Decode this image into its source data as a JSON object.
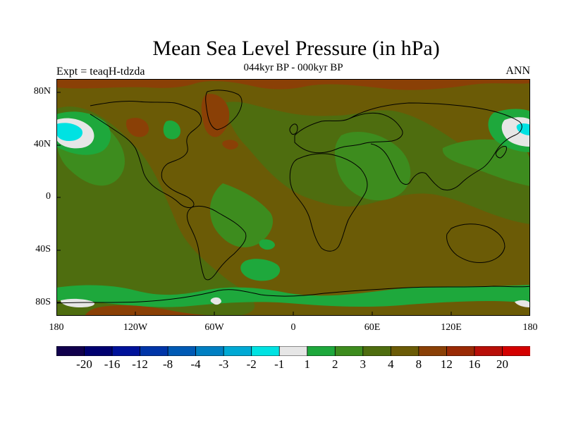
{
  "map": {
    "title": "Mean Sea Level Pressure (in hPa)",
    "subtitle": "044kyr BP - 000kyr BP",
    "left_label": "Expt = teaqH-tdzda",
    "right_label": "ANN",
    "lat_ticks": [
      "80N",
      "40N",
      "0",
      "40S",
      "80S"
    ],
    "lon_ticks": [
      "180",
      "120W",
      "60W",
      "0",
      "60E",
      "120E",
      "180"
    ],
    "colorbar_labels": [
      "-20",
      "-16",
      "-12",
      "-8",
      "-4",
      "-3",
      "-2",
      "-1",
      "1",
      "2",
      "3",
      "4",
      "8",
      "12",
      "16",
      "20"
    ],
    "colorbar_colors": [
      "#11004d",
      "#000070",
      "#00129a",
      "#0035a8",
      "#005ab5",
      "#007fc2",
      "#00a9d4",
      "#00e2e2",
      "#e6e6e6",
      "#1ea83c",
      "#3d8c1e",
      "#4e6d0f",
      "#6b5b06",
      "#8a4006",
      "#9a2a05",
      "#b80f08",
      "#d40000"
    ],
    "colors": {
      "land_ocean_base": "#6b5b06",
      "positive_high": "#8a4006",
      "moderate": "#4e6d0f",
      "low_positive": "#3d8c1e",
      "near_zero": "#1ea83c",
      "slight_negative": "#e6e6e6",
      "negative": "#00e2e2"
    }
  }
}
